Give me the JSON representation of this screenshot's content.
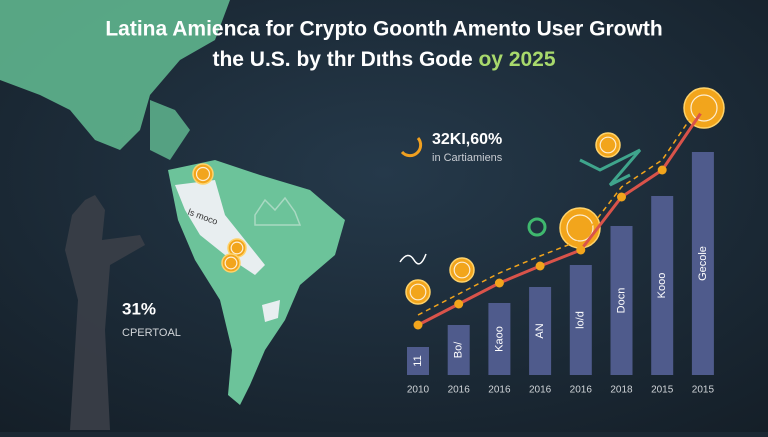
{
  "chart_data": {
    "type": "bar",
    "title": "Latina Amienca for Crypto Goonth Amento User Growth",
    "subtitle": "the U.S. by thr Dıths Gode",
    "subtitle_highlight": "oy 2025",
    "categories": [
      "2010",
      "2016",
      "2016",
      "2016",
      "2016",
      "2018",
      "2015",
      "2015"
    ],
    "series": [
      {
        "type": "bar",
        "color": "#4f5b8c",
        "values": [
          28,
          50,
          72,
          88,
          110,
          149,
          179,
          223
        ],
        "bar_labels": [
          "11",
          "Bo/",
          "Kaoo",
          "AN",
          "lo/d",
          "Docn",
          "Kooo",
          "Gecole"
        ]
      },
      {
        "type": "line",
        "color": "#d9534a",
        "values": [
          50,
          71,
          92,
          109,
          125,
          178,
          205,
          265
        ]
      }
    ],
    "stat_main": "32KI,60%",
    "stat_sub": "in Cartiamiens",
    "map_stat": "31%",
    "map_stat_label": "CPERTOAL",
    "map_label": "ls moco"
  }
}
